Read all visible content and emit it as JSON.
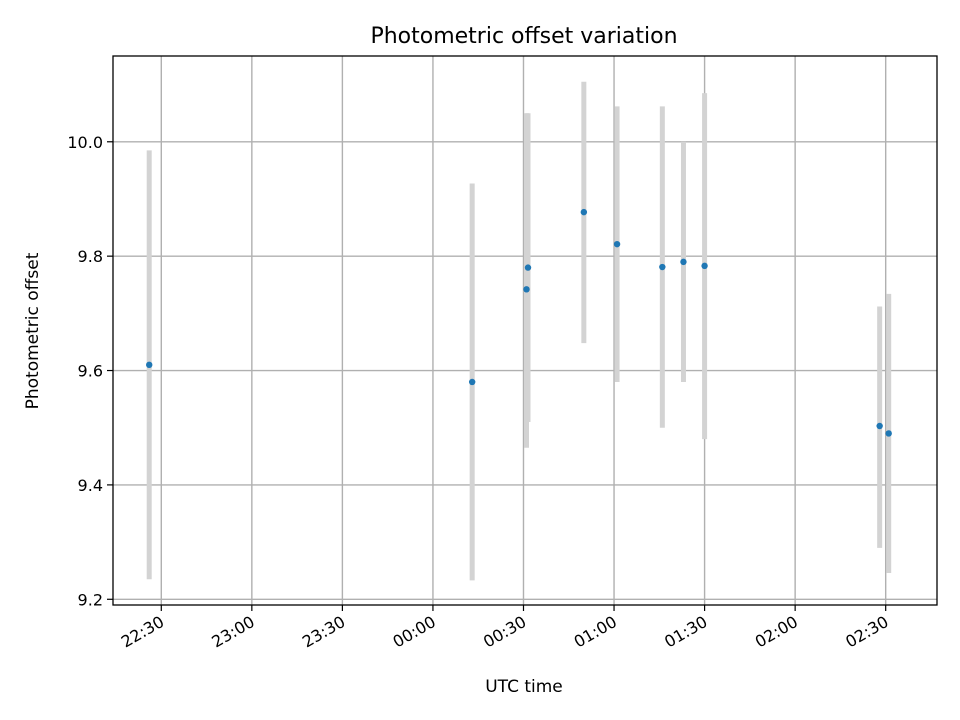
{
  "chart_data": {
    "type": "scatter",
    "title": "Photometric offset variation",
    "xlabel": "UTC time",
    "ylabel": "Photometric offset",
    "x_ticks": [
      "22:30",
      "23:00",
      "23:30",
      "00:00",
      "00:30",
      "01:00",
      "01:30",
      "02:00",
      "02:30"
    ],
    "x_tick_times": [
      "22:30",
      "23:00",
      "23:30",
      "00:00",
      "00:30",
      "01:00",
      "01:30",
      "02:00",
      "02:30"
    ],
    "xlim": [
      "22:14",
      "02:47"
    ],
    "ylim": [
      9.19,
      10.15
    ],
    "y_ticks": [
      9.2,
      9.4,
      9.6,
      9.8,
      10.0
    ],
    "y_tick_labels": [
      "9.2",
      "9.4",
      "9.6",
      "9.8",
      "10.0"
    ],
    "grid": true,
    "points": [
      {
        "t": "22:26",
        "y": 9.61,
        "err_low": 9.235,
        "err_high": 9.985
      },
      {
        "t": "00:13",
        "y": 9.58,
        "err_low": 9.233,
        "err_high": 9.927
      },
      {
        "t": "00:31",
        "y": 9.742,
        "err_low": 9.465,
        "err_high": 10.05
      },
      {
        "t": "00:31",
        "y": 9.78,
        "err_low": 9.51,
        "err_high": 10.05
      },
      {
        "t": "00:50",
        "y": 9.877,
        "err_low": 9.648,
        "err_high": 10.105
      },
      {
        "t": "01:01",
        "y": 9.821,
        "err_low": 9.58,
        "err_high": 10.062
      },
      {
        "t": "01:16",
        "y": 9.781,
        "err_low": 9.5,
        "err_high": 10.062
      },
      {
        "t": "01:23",
        "y": 9.79,
        "err_low": 9.58,
        "err_high": 10.0
      },
      {
        "t": "01:30",
        "y": 9.783,
        "err_low": 9.48,
        "err_high": 10.085
      },
      {
        "t": "02:28",
        "y": 9.503,
        "err_low": 9.29,
        "err_high": 9.712
      },
      {
        "t": "02:31",
        "y": 9.49,
        "err_low": 9.246,
        "err_high": 9.734
      }
    ],
    "colors": {
      "points": "#1f77b4",
      "errorbars": "#d3d3d3",
      "grid": "#b0b0b0"
    }
  }
}
